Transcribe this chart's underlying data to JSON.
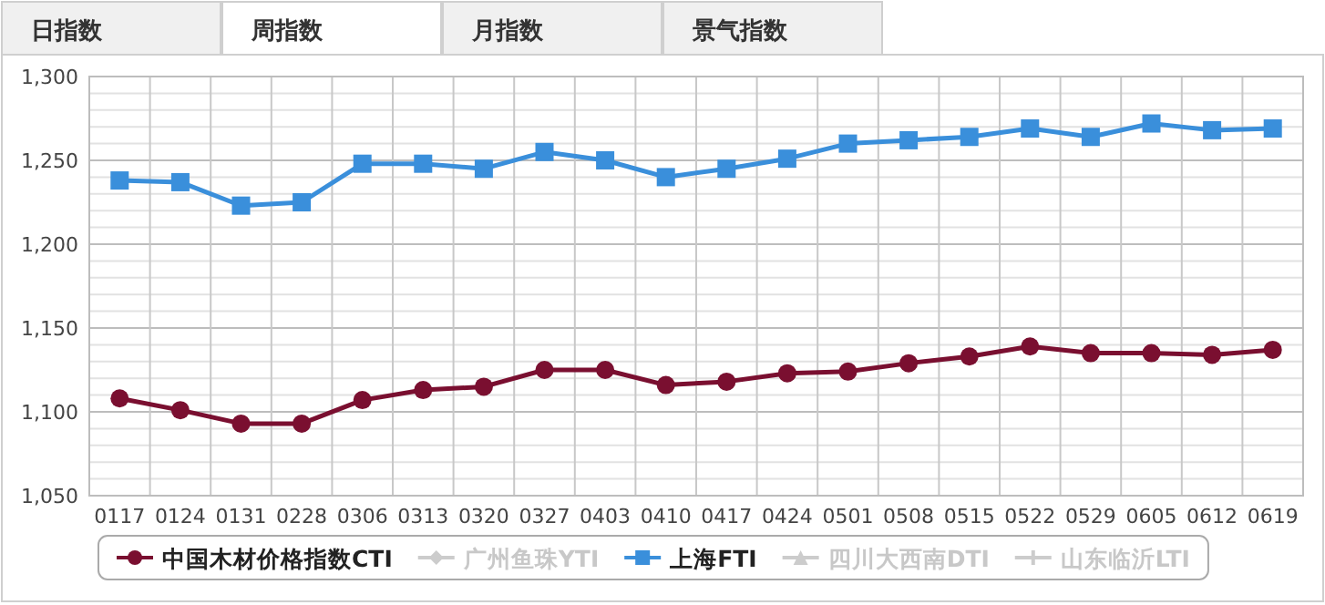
{
  "chart_data": {
    "type": "line",
    "annotations": [
      "日指数",
      "周指数",
      "月指数",
      "景气指数"
    ],
    "categories": [
      "0117",
      "0124",
      "0131",
      "0228",
      "0306",
      "0313",
      "0320",
      "0327",
      "0403",
      "0410",
      "0417",
      "0424",
      "0501",
      "0508",
      "0515",
      "0522",
      "0529",
      "0605",
      "0612",
      "0619"
    ],
    "series": [
      {
        "name": "中国木材价格指数CTI",
        "color": "#7a0f30",
        "marker": "circle",
        "values": [
          1108,
          1101,
          1093,
          1093,
          1107,
          1113,
          1115,
          1125,
          1125,
          1116,
          1118,
          1123,
          1124,
          1129,
          1133,
          1139,
          1135,
          1135,
          1134,
          1137
        ]
      },
      {
        "name": "广州鱼珠YTI",
        "color": "#cccccc",
        "marker": "diamond",
        "values": [
          null,
          null,
          null,
          null,
          null,
          null,
          null,
          null,
          null,
          null,
          null,
          null,
          null,
          null,
          null,
          null,
          null,
          null,
          null,
          null
        ]
      },
      {
        "name": "上海FTI",
        "color": "#3a8fdb",
        "marker": "square",
        "values": [
          1238,
          1237,
          1223,
          1225,
          1248,
          1248,
          1245,
          1255,
          1250,
          1240,
          1245,
          1251,
          1260,
          1262,
          1264,
          1269,
          1264,
          1272,
          1268,
          1269
        ]
      },
      {
        "name": "四川大西南DTI",
        "color": "#cccccc",
        "marker": "triangle",
        "values": [
          null,
          null,
          null,
          null,
          null,
          null,
          null,
          null,
          null,
          null,
          null,
          null,
          null,
          null,
          null,
          null,
          null,
          null,
          null,
          null
        ]
      },
      {
        "name": "山东临沂LTI",
        "color": "#cccccc",
        "marker": "cross",
        "values": [
          null,
          null,
          null,
          null,
          null,
          null,
          null,
          null,
          null,
          null,
          null,
          null,
          null,
          null,
          null,
          null,
          null,
          null,
          null,
          null
        ]
      }
    ],
    "ylim": [
      1050,
      1300
    ],
    "yticks": [
      {
        "value": 1050,
        "label": "1,050"
      },
      {
        "value": 1100,
        "label": "1,100"
      },
      {
        "value": 1150,
        "label": "1,150"
      },
      {
        "value": 1200,
        "label": "1,200"
      },
      {
        "value": 1250,
        "label": "1,250"
      },
      {
        "value": 1300,
        "label": "1,300"
      }
    ],
    "grid": true,
    "legend": "bottom",
    "line_style": "solid"
  }
}
